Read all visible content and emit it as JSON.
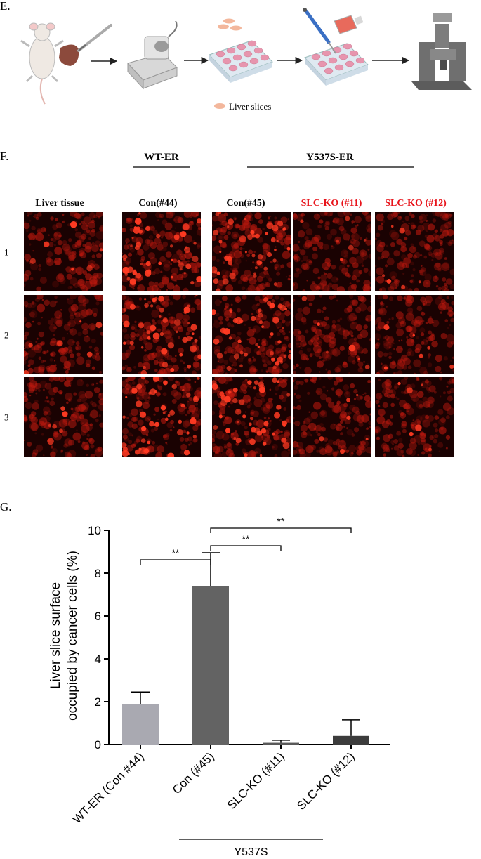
{
  "panels": {
    "E": {
      "label": "E.",
      "legend": "Liver slices"
    },
    "F": {
      "label": "F.",
      "groups": [
        "WT-ER",
        "Y537S-ER"
      ],
      "columns": [
        {
          "text": "Liver tissue",
          "color": "#000000"
        },
        {
          "text": "Con(#44)",
          "color": "#000000"
        },
        {
          "text": "Con(#45)",
          "color": "#000000"
        },
        {
          "text": "SLC-KO  (#11)",
          "color": "#e8141b"
        },
        {
          "text": "SLC-KO (#12)",
          "color": "#e8141b"
        }
      ],
      "rows": [
        "1",
        "2",
        "3"
      ]
    },
    "G": {
      "label": "G."
    }
  },
  "chart_data": {
    "type": "bar",
    "y_label": [
      "Liver slice surface",
      "occupied by cancer cells (%)"
    ],
    "categories": [
      "WT-ER (Con #44)",
      "Con (#45)",
      "SLC-KO (#11)",
      "SLC-KO (#12)"
    ],
    "values": [
      1.87,
      7.38,
      0.08,
      0.4
    ],
    "errors": [
      0.58,
      1.57,
      0.12,
      0.75
    ],
    "colors": [
      "#a9a9b1",
      "#636363",
      "#595959",
      "#3c3c3c"
    ],
    "ylim": [
      0,
      10
    ],
    "yticks": [
      0,
      2,
      4,
      6,
      8,
      10
    ],
    "significance": [
      {
        "label": "**",
        "between": [
          "WT-ER (Con #44)",
          "Con (#45)"
        ]
      },
      {
        "label": "**",
        "between": [
          "Con (#45)",
          "SLC-KO (#11)"
        ]
      },
      {
        "label": "**",
        "between": [
          "Con (#45)",
          "SLC-KO (#12)"
        ]
      }
    ],
    "group": {
      "label": "Y537S",
      "categories": [
        "Con (#45)",
        "SLC-KO (#11)",
        "SLC-KO (#12)"
      ]
    }
  }
}
